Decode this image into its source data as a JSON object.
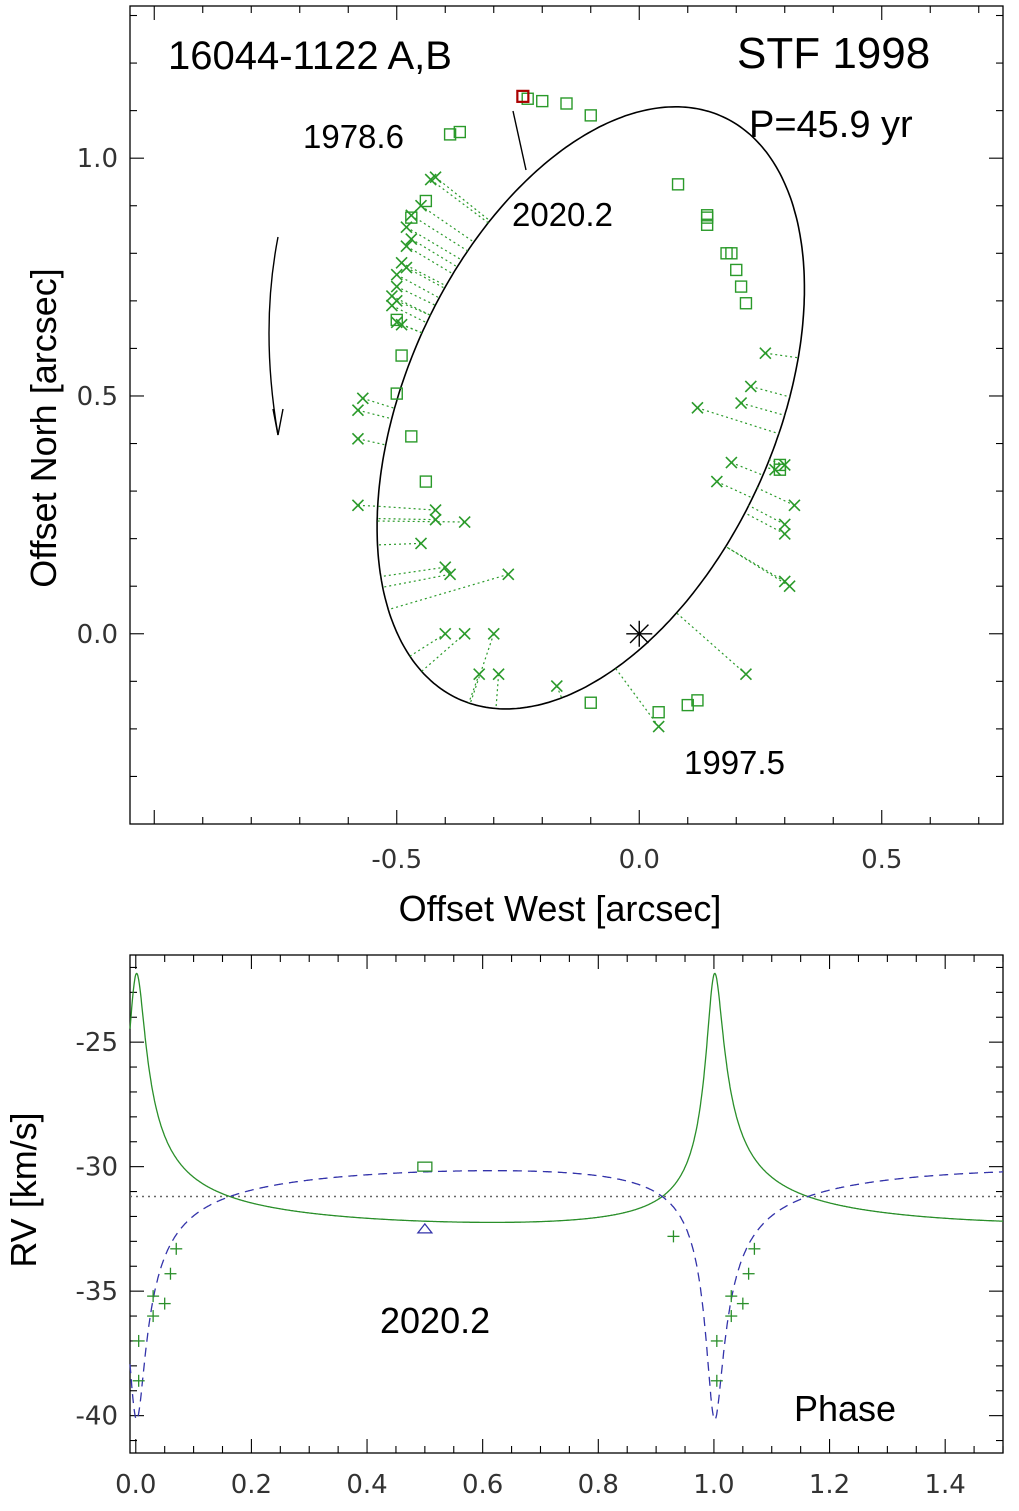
{
  "chart_data": [
    {
      "type": "scatter",
      "title_left": "16044-1122 A,B",
      "title_right": "STF 1998",
      "period_label": "P=45.9 yr",
      "xlabel": "Offset West [arcsec]",
      "ylabel": "Offset Norh [arcsec]",
      "xlim": [
        -1.05,
        0.75
      ],
      "ylim": [
        -0.4,
        1.32
      ],
      "xticks": [
        "-0.5",
        "0.0",
        "0.5"
      ],
      "xtick_values": [
        -0.5,
        0.0,
        0.5
      ],
      "yticks": [
        "0.0",
        "0.5",
        "1.0"
      ],
      "ytick_values": [
        0.0,
        0.5,
        1.0
      ],
      "annotations": [
        {
          "text": "1978.6",
          "x": -0.42,
          "y": 1.05
        },
        {
          "text": "2020.2",
          "x": -0.24,
          "y": 1.13
        },
        {
          "text": "1997.5",
          "x": 0.04,
          "y": -0.18
        }
      ],
      "primary_star": {
        "x": 0.0,
        "y": 0.0
      },
      "orbit_ellipse": {
        "center_x": -0.1,
        "center_y": 0.475,
        "semi_major": 0.67,
        "semi_minor": 0.382,
        "orientation_deg": 66.5
      },
      "series": [
        {
          "name": "squares",
          "marker": "square",
          "points": [
            [
              -0.23,
              1.125
            ],
            [
              -0.2,
              1.12
            ],
            [
              -0.15,
              1.115
            ],
            [
              -0.1,
              1.09
            ],
            [
              -0.37,
              1.055
            ],
            [
              -0.39,
              1.05
            ],
            [
              0.08,
              0.945
            ],
            [
              0.14,
              0.88
            ],
            [
              0.14,
              0.875
            ],
            [
              0.14,
              0.86
            ],
            [
              0.18,
              0.8
            ],
            [
              0.19,
              0.8
            ],
            [
              0.2,
              0.765
            ],
            [
              0.21,
              0.73
            ],
            [
              0.22,
              0.695
            ],
            [
              -0.44,
              0.91
            ],
            [
              -0.47,
              0.875
            ],
            [
              -0.5,
              0.66
            ],
            [
              -0.49,
              0.585
            ],
            [
              -0.5,
              0.505
            ],
            [
              -0.47,
              0.415
            ],
            [
              -0.44,
              0.32
            ],
            [
              0.29,
              0.355
            ],
            [
              0.29,
              0.345
            ],
            [
              -0.1,
              -0.145
            ],
            [
              0.04,
              -0.165
            ],
            [
              0.1,
              -0.15
            ],
            [
              0.12,
              -0.14
            ]
          ]
        },
        {
          "name": "highlight",
          "marker": "square-red",
          "points": [
            [
              -0.24,
              1.13
            ]
          ]
        },
        {
          "name": "crosses",
          "marker": "x",
          "points": [
            [
              -0.42,
              0.96
            ],
            [
              -0.43,
              0.955
            ],
            [
              -0.47,
              0.88
            ],
            [
              -0.45,
              0.9
            ],
            [
              -0.48,
              0.855
            ],
            [
              -0.47,
              0.83
            ],
            [
              -0.48,
              0.815
            ],
            [
              -0.49,
              0.78
            ],
            [
              -0.48,
              0.77
            ],
            [
              -0.5,
              0.755
            ],
            [
              -0.5,
              0.73
            ],
            [
              -0.51,
              0.71
            ],
            [
              -0.5,
              0.7
            ],
            [
              -0.51,
              0.69
            ],
            [
              -0.5,
              0.655
            ],
            [
              -0.49,
              0.65
            ],
            [
              -0.57,
              0.495
            ],
            [
              -0.58,
              0.47
            ],
            [
              -0.58,
              0.41
            ],
            [
              -0.58,
              0.27
            ],
            [
              -0.45,
              0.19
            ],
            [
              -0.4,
              0.14
            ],
            [
              -0.39,
              0.125
            ],
            [
              -0.27,
              0.125
            ],
            [
              -0.42,
              0.26
            ],
            [
              -0.36,
              0.235
            ],
            [
              -0.42,
              0.24
            ],
            [
              -0.4,
              0.0
            ],
            [
              -0.36,
              0.0
            ],
            [
              -0.3,
              0.0
            ],
            [
              -0.33,
              -0.085
            ],
            [
              -0.29,
              -0.085
            ],
            [
              -0.17,
              -0.11
            ],
            [
              0.04,
              -0.195
            ],
            [
              0.22,
              -0.085
            ],
            [
              0.12,
              0.475
            ],
            [
              0.21,
              0.485
            ],
            [
              0.23,
              0.52
            ],
            [
              0.26,
              0.59
            ],
            [
              0.16,
              0.32
            ],
            [
              0.19,
              0.36
            ],
            [
              0.28,
              0.345
            ],
            [
              0.3,
              0.355
            ],
            [
              0.3,
              0.23
            ],
            [
              0.3,
              0.21
            ],
            [
              0.32,
              0.27
            ],
            [
              0.3,
              0.11
            ],
            [
              0.31,
              0.1
            ]
          ]
        }
      ]
    },
    {
      "type": "line",
      "xlabel": "Phase",
      "ylabel": "RV [km/s]",
      "xlim": [
        -0.01,
        1.5
      ],
      "ylim": [
        -41.5,
        -21.5
      ],
      "xticks": [
        "0.0",
        "0.2",
        "0.4",
        "0.6",
        "0.8",
        "1.0",
        "1.2",
        "1.4"
      ],
      "xtick_values": [
        0.0,
        0.2,
        0.4,
        0.6,
        0.8,
        1.0,
        1.2,
        1.4
      ],
      "yticks": [
        "-25",
        "-30",
        "-35",
        "-40"
      ],
      "ytick_values": [
        -25,
        -30,
        -35,
        -40
      ],
      "gamma": -31.2,
      "annotation": "2020.2",
      "orbit_params": {
        "e": 0.8,
        "omega_deg": 352,
        "K_primary": 5.0,
        "K_secondary": 5.0,
        "T0_phase": 0.0
      },
      "series": [
        {
          "name": "",
          "style": "solid-green",
          "component": "primary",
          "points_plus": [
            [
              0.005,
              -37.0
            ],
            [
              0.005,
              -38.6
            ],
            [
              0.03,
              -35.2
            ],
            [
              0.03,
              -36.0
            ],
            [
              0.05,
              -35.5
            ],
            [
              0.06,
              -34.3
            ],
            [
              0.07,
              -33.3
            ],
            [
              0.93,
              -32.8
            ],
            [
              1.005,
              -37.0
            ],
            [
              1.005,
              -38.6
            ],
            [
              1.03,
              -35.2
            ],
            [
              1.03,
              -36.0
            ],
            [
              1.05,
              -35.5
            ],
            [
              1.06,
              -34.3
            ],
            [
              1.07,
              -33.3
            ]
          ],
          "points_square": [
            [
              0.5,
              -30.0
            ]
          ]
        },
        {
          "name": "",
          "style": "dashed-blue",
          "component": "secondary",
          "points_triangle": [
            [
              0.5,
              -32.5
            ]
          ]
        }
      ]
    }
  ]
}
